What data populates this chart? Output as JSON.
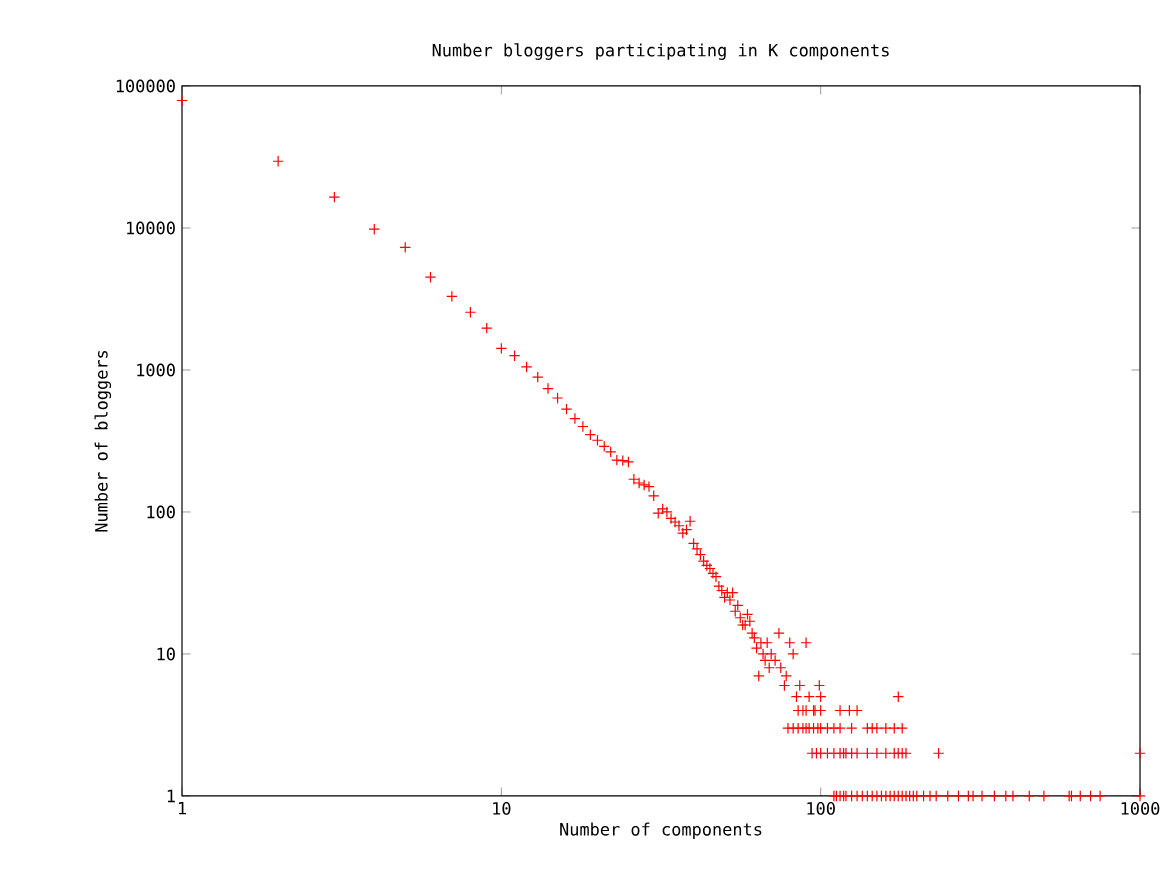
{
  "chart_data": {
    "type": "scatter",
    "title": "Number bloggers participating in K components",
    "xlabel": "Number of components",
    "ylabel": "Number of bloggers",
    "log": "xy",
    "xlim": [
      1,
      1000
    ],
    "ylim": [
      1,
      100000
    ],
    "xticks": [
      1,
      10,
      100,
      1000
    ],
    "yticks": [
      1,
      10,
      100,
      1000,
      10000,
      100000
    ],
    "marker": "cross",
    "grid": false,
    "series": [
      {
        "color": "#ff0000",
        "x": [
          1,
          2,
          3,
          4,
          5,
          6,
          7,
          8,
          9,
          10,
          11,
          12,
          13,
          14,
          15,
          16,
          17,
          18,
          19,
          20,
          21,
          22,
          23,
          24,
          25,
          26,
          27,
          28,
          29,
          30,
          31,
          32,
          33,
          34,
          35,
          36,
          37,
          38,
          39,
          40,
          41,
          42,
          43,
          44,
          45,
          46,
          47,
          48,
          49,
          50,
          51,
          52,
          53,
          54,
          55,
          56,
          57,
          58,
          59,
          60,
          61,
          62,
          63,
          64,
          65,
          66,
          67,
          68,
          69,
          70,
          72,
          74,
          75,
          77,
          78,
          80,
          82,
          84,
          86,
          88,
          90,
          92,
          96,
          99,
          100,
          79,
          82,
          85,
          88,
          90,
          92,
          95,
          98,
          100,
          105,
          110,
          115,
          125,
          140,
          145,
          150,
          160,
          170,
          180,
          85,
          90,
          95,
          100,
          115,
          123,
          130,
          175,
          94,
          97,
          100,
          105,
          110,
          115,
          118,
          120,
          125,
          130,
          140,
          150,
          160,
          170,
          175,
          180,
          185,
          234,
          1000,
          110,
          112,
          115,
          118,
          120,
          125,
          130,
          135,
          140,
          145,
          150,
          155,
          160,
          165,
          170,
          175,
          180,
          185,
          190,
          195,
          200,
          210,
          220,
          230,
          250,
          270,
          290,
          300,
          320,
          350,
          380,
          400,
          450,
          500,
          600,
          610,
          650,
          700,
          750,
          1000
        ],
        "values": [
          79000,
          29500,
          16500,
          9800,
          7300,
          4500,
          3300,
          2550,
          1970,
          1420,
          1260,
          1050,
          890,
          740,
          635,
          530,
          455,
          400,
          350,
          320,
          290,
          265,
          232,
          230,
          225,
          170,
          160,
          155,
          151,
          130,
          98,
          105,
          100,
          90,
          85,
          80,
          71,
          75,
          86,
          60,
          55,
          50,
          45,
          42,
          40,
          37,
          35,
          30,
          28,
          25,
          27,
          24,
          27,
          20,
          22,
          18,
          16,
          16,
          19,
          17,
          14,
          13,
          11,
          7,
          12,
          10,
          9,
          12,
          8,
          10,
          9,
          14,
          8,
          6,
          7,
          12,
          10,
          5,
          6,
          4,
          12,
          5,
          4,
          6,
          5,
          3,
          3,
          3,
          3,
          3,
          3,
          3,
          3,
          3,
          3,
          3,
          3,
          3,
          3,
          3,
          3,
          3,
          3,
          3,
          4,
          4,
          4,
          4,
          4,
          4,
          4,
          5,
          2,
          2,
          2,
          2,
          2,
          2,
          2,
          2,
          2,
          2,
          2,
          2,
          2,
          2,
          2,
          2,
          2,
          2,
          2,
          1,
          1,
          1,
          1,
          1,
          1,
          1,
          1,
          1,
          1,
          1,
          1,
          1,
          1,
          1,
          1,
          1,
          1,
          1,
          1,
          1,
          1,
          1,
          1,
          1,
          1,
          1,
          1,
          1,
          1,
          1,
          1,
          1,
          1,
          1,
          1,
          1,
          1,
          1,
          1
        ]
      }
    ]
  }
}
